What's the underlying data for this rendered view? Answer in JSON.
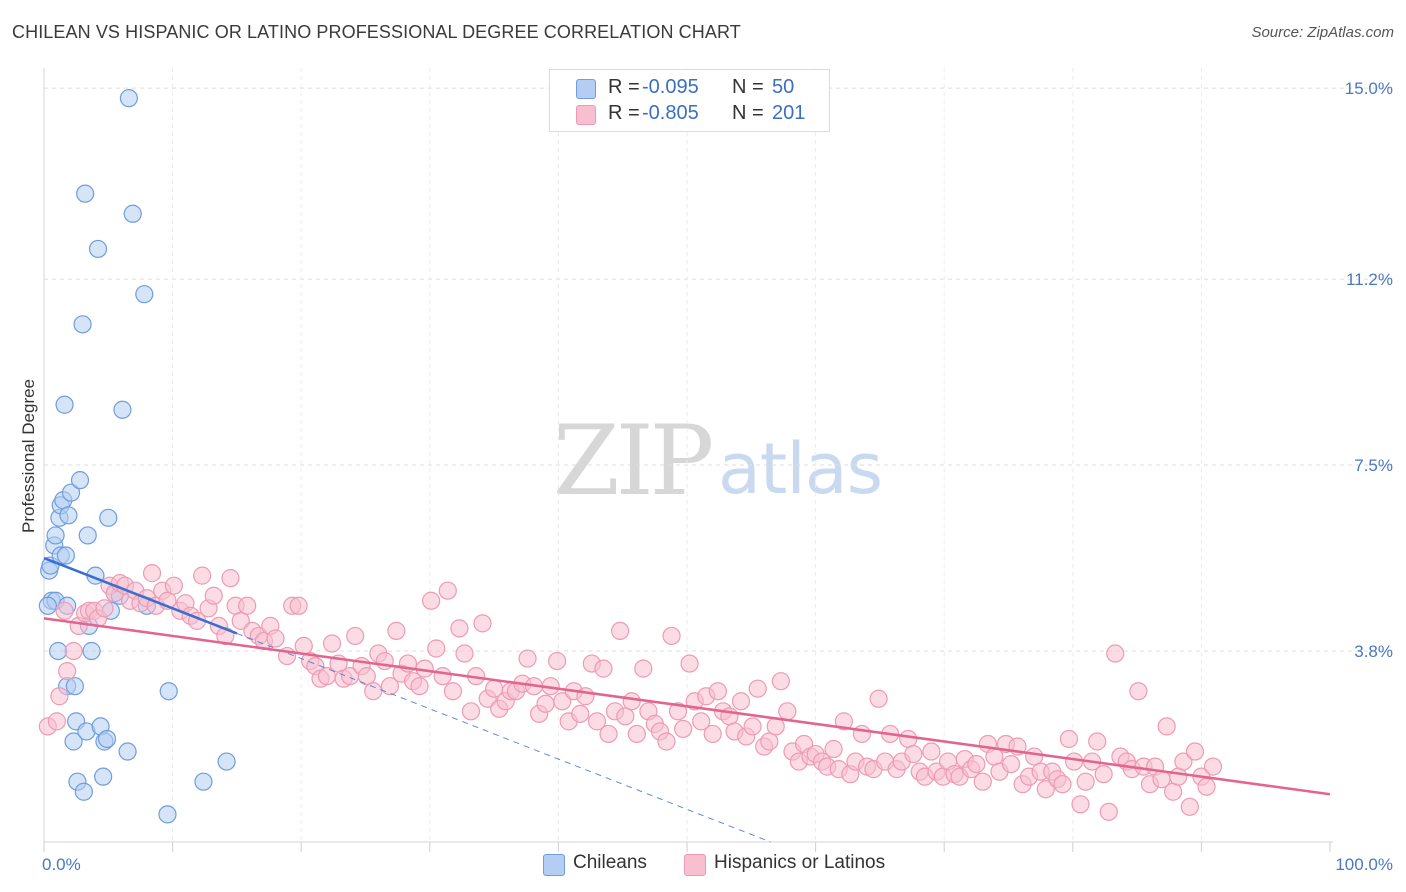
{
  "header": {
    "title": "CHILEAN VS HISPANIC OR LATINO PROFESSIONAL DEGREE CORRELATION CHART",
    "source": "Source: ZipAtlas.com"
  },
  "watermark": {
    "part1": "ZIP",
    "part2": "atlas"
  },
  "colors": {
    "blue_fill": "#b4cdf3",
    "blue_stroke": "#6f9ddd",
    "blue_line": "#3a6fd0",
    "pink_fill": "#f7bfd0",
    "pink_stroke": "#ee9ab4",
    "pink_line": "#e2648f",
    "tick_text": "#4a78c2",
    "grid": "#dedede"
  },
  "legend": {
    "rows": [
      {
        "r_label": "R =",
        "r_value": "-0.095",
        "n_label": "N =",
        "n_value": "50"
      },
      {
        "r_label": "R =",
        "r_value": "-0.805",
        "n_label": "N =",
        "n_value": "201"
      }
    ],
    "bottom": [
      "Chileans",
      "Hispanics or Latinos"
    ]
  },
  "chart_data": {
    "type": "scatter",
    "title": "CHILEAN VS HISPANIC OR LATINO PROFESSIONAL DEGREE CORRELATION CHART",
    "xlabel": "",
    "ylabel": "Professional Degree",
    "xlim": [
      0,
      100
    ],
    "ylim": [
      0,
      15.4
    ],
    "x_tick_labels": [
      "0.0%",
      "100.0%"
    ],
    "y_ticks": [
      3.8,
      7.5,
      11.2,
      15.0
    ],
    "y_tick_labels": [
      "3.8%",
      "7.5%",
      "11.2%",
      "15.0%"
    ],
    "grid": true,
    "series": [
      {
        "name": "Chileans",
        "color": "blue",
        "R": -0.095,
        "N": 50,
        "trend": {
          "x0": 0,
          "y0": 5.65,
          "x1": 15,
          "y1": 4.15,
          "dashed_to_x": 56.5
        },
        "points": [
          [
            0.4,
            5.4
          ],
          [
            0.5,
            5.5
          ],
          [
            0.6,
            4.8
          ],
          [
            0.8,
            5.9
          ],
          [
            0.9,
            4.8
          ],
          [
            0.9,
            6.1
          ],
          [
            1.1,
            3.8
          ],
          [
            1.2,
            6.45
          ],
          [
            1.3,
            5.7
          ],
          [
            1.3,
            6.7
          ],
          [
            1.5,
            6.8
          ],
          [
            1.6,
            8.7
          ],
          [
            1.7,
            5.7
          ],
          [
            1.8,
            4.7
          ],
          [
            1.8,
            3.1
          ],
          [
            1.9,
            6.5
          ],
          [
            2.1,
            6.95
          ],
          [
            2.3,
            2.0
          ],
          [
            2.4,
            3.1
          ],
          [
            2.5,
            2.4
          ],
          [
            2.6,
            1.2
          ],
          [
            2.8,
            7.2
          ],
          [
            3.0,
            10.3
          ],
          [
            3.1,
            1.0
          ],
          [
            3.2,
            12.9
          ],
          [
            3.3,
            2.2
          ],
          [
            3.4,
            6.1
          ],
          [
            3.5,
            4.3
          ],
          [
            3.7,
            3.8
          ],
          [
            4.0,
            5.3
          ],
          [
            4.2,
            11.8
          ],
          [
            4.4,
            2.3
          ],
          [
            4.6,
            1.3
          ],
          [
            4.7,
            2.0
          ],
          [
            4.9,
            2.05
          ],
          [
            5.0,
            6.45
          ],
          [
            5.2,
            4.6
          ],
          [
            5.5,
            4.95
          ],
          [
            5.9,
            4.9
          ],
          [
            6.1,
            8.6
          ],
          [
            6.5,
            1.8
          ],
          [
            6.6,
            14.8
          ],
          [
            6.9,
            12.5
          ],
          [
            7.8,
            10.9
          ],
          [
            8.0,
            4.7
          ],
          [
            9.6,
            0.55
          ],
          [
            9.7,
            3.0
          ],
          [
            12.4,
            1.2
          ],
          [
            14.2,
            1.6
          ],
          [
            0.3,
            4.7
          ]
        ]
      },
      {
        "name": "Hispanics or Latinos",
        "color": "pink",
        "R": -0.805,
        "N": 201,
        "trend": {
          "x0": 0,
          "y0": 4.45,
          "x1": 100,
          "y1": 0.95
        },
        "points": [
          [
            0.3,
            2.3
          ],
          [
            1.0,
            2.4
          ],
          [
            1.2,
            2.9
          ],
          [
            1.6,
            4.6
          ],
          [
            1.8,
            3.4
          ],
          [
            2.3,
            3.8
          ],
          [
            2.7,
            4.3
          ],
          [
            3.2,
            4.55
          ],
          [
            3.5,
            4.6
          ],
          [
            3.9,
            4.6
          ],
          [
            4.2,
            4.45
          ],
          [
            4.7,
            4.65
          ],
          [
            5.1,
            5.1
          ],
          [
            5.5,
            4.95
          ],
          [
            5.9,
            5.15
          ],
          [
            6.3,
            5.1
          ],
          [
            6.7,
            4.8
          ],
          [
            7.1,
            5.0
          ],
          [
            7.5,
            4.75
          ],
          [
            8.0,
            4.85
          ],
          [
            8.4,
            5.35
          ],
          [
            8.7,
            4.7
          ],
          [
            9.2,
            5.0
          ],
          [
            9.6,
            4.8
          ],
          [
            10.1,
            5.1
          ],
          [
            10.6,
            4.6
          ],
          [
            11.0,
            4.75
          ],
          [
            11.4,
            4.5
          ],
          [
            11.9,
            4.4
          ],
          [
            12.3,
            5.3
          ],
          [
            12.8,
            4.65
          ],
          [
            13.2,
            4.9
          ],
          [
            13.6,
            4.3
          ],
          [
            14.1,
            4.1
          ],
          [
            14.5,
            5.25
          ],
          [
            14.9,
            4.7
          ],
          [
            15.3,
            4.4
          ],
          [
            15.8,
            4.7
          ],
          [
            16.2,
            4.2
          ],
          [
            16.7,
            4.1
          ],
          [
            17.1,
            4.0
          ],
          [
            17.6,
            4.3
          ],
          [
            18.0,
            4.05
          ],
          [
            18.9,
            3.7
          ],
          [
            19.3,
            4.7
          ],
          [
            19.8,
            4.7
          ],
          [
            20.2,
            3.9
          ],
          [
            20.7,
            3.6
          ],
          [
            21.1,
            3.5
          ],
          [
            21.5,
            3.25
          ],
          [
            22.0,
            3.3
          ],
          [
            22.4,
            3.95
          ],
          [
            22.9,
            3.55
          ],
          [
            23.3,
            3.25
          ],
          [
            23.8,
            3.3
          ],
          [
            24.2,
            4.1
          ],
          [
            24.7,
            3.5
          ],
          [
            25.1,
            3.3
          ],
          [
            25.6,
            3.0
          ],
          [
            26.0,
            3.75
          ],
          [
            26.5,
            3.6
          ],
          [
            26.9,
            3.1
          ],
          [
            27.4,
            4.2
          ],
          [
            27.8,
            3.35
          ],
          [
            28.3,
            3.55
          ],
          [
            28.7,
            3.2
          ],
          [
            29.2,
            3.1
          ],
          [
            29.6,
            3.45
          ],
          [
            30.1,
            4.8
          ],
          [
            30.5,
            3.85
          ],
          [
            31.0,
            3.3
          ],
          [
            31.4,
            5.0
          ],
          [
            31.8,
            3.0
          ],
          [
            32.3,
            4.25
          ],
          [
            32.7,
            3.75
          ],
          [
            33.2,
            2.6
          ],
          [
            33.6,
            3.3
          ],
          [
            34.1,
            4.35
          ],
          [
            34.5,
            2.85
          ],
          [
            35.0,
            3.05
          ],
          [
            35.4,
            2.65
          ],
          [
            35.9,
            2.8
          ],
          [
            36.3,
            3.0
          ],
          [
            36.7,
            3.0
          ],
          [
            37.2,
            3.15
          ],
          [
            37.6,
            3.65
          ],
          [
            38.1,
            3.1
          ],
          [
            38.5,
            2.55
          ],
          [
            39.0,
            2.75
          ],
          [
            39.4,
            3.1
          ],
          [
            39.9,
            3.6
          ],
          [
            40.3,
            2.8
          ],
          [
            40.8,
            2.4
          ],
          [
            41.2,
            3.0
          ],
          [
            41.7,
            2.55
          ],
          [
            42.1,
            2.9
          ],
          [
            42.6,
            3.55
          ],
          [
            43.0,
            2.4
          ],
          [
            43.5,
            3.45
          ],
          [
            43.9,
            2.15
          ],
          [
            44.4,
            2.6
          ],
          [
            44.8,
            4.2
          ],
          [
            45.2,
            2.5
          ],
          [
            45.7,
            2.8
          ],
          [
            46.1,
            2.15
          ],
          [
            46.6,
            3.45
          ],
          [
            47.0,
            2.6
          ],
          [
            47.5,
            2.35
          ],
          [
            47.9,
            2.2
          ],
          [
            48.4,
            2.0
          ],
          [
            48.8,
            4.1
          ],
          [
            49.3,
            2.6
          ],
          [
            49.7,
            2.25
          ],
          [
            50.2,
            3.55
          ],
          [
            50.6,
            2.8
          ],
          [
            51.1,
            2.4
          ],
          [
            51.5,
            2.9
          ],
          [
            52.0,
            2.15
          ],
          [
            52.4,
            3.0
          ],
          [
            52.8,
            2.6
          ],
          [
            53.3,
            2.5
          ],
          [
            53.7,
            2.2
          ],
          [
            54.2,
            2.8
          ],
          [
            54.6,
            2.1
          ],
          [
            55.1,
            2.3
          ],
          [
            55.5,
            3.05
          ],
          [
            56.0,
            1.9
          ],
          [
            56.4,
            2.0
          ],
          [
            56.9,
            2.3
          ],
          [
            57.3,
            3.2
          ],
          [
            57.8,
            2.6
          ],
          [
            58.2,
            1.8
          ],
          [
            58.7,
            1.6
          ],
          [
            59.1,
            1.95
          ],
          [
            59.6,
            1.7
          ],
          [
            60.0,
            1.75
          ],
          [
            60.5,
            1.6
          ],
          [
            60.9,
            1.5
          ],
          [
            61.4,
            1.85
          ],
          [
            61.8,
            1.45
          ],
          [
            62.2,
            2.4
          ],
          [
            62.7,
            1.35
          ],
          [
            63.1,
            1.6
          ],
          [
            63.6,
            2.15
          ],
          [
            64.0,
            1.5
          ],
          [
            64.5,
            1.45
          ],
          [
            64.9,
            2.85
          ],
          [
            65.4,
            1.6
          ],
          [
            65.8,
            2.15
          ],
          [
            66.3,
            1.45
          ],
          [
            66.7,
            1.6
          ],
          [
            67.2,
            2.05
          ],
          [
            67.6,
            1.75
          ],
          [
            68.1,
            1.4
          ],
          [
            68.5,
            1.3
          ],
          [
            69.0,
            1.8
          ],
          [
            69.4,
            1.4
          ],
          [
            69.9,
            1.3
          ],
          [
            70.3,
            1.6
          ],
          [
            70.8,
            1.35
          ],
          [
            71.2,
            1.3
          ],
          [
            71.6,
            1.65
          ],
          [
            72.1,
            1.45
          ],
          [
            72.5,
            1.55
          ],
          [
            73.0,
            1.2
          ],
          [
            73.4,
            1.95
          ],
          [
            73.9,
            1.7
          ],
          [
            74.3,
            1.4
          ],
          [
            74.8,
            1.95
          ],
          [
            75.2,
            1.55
          ],
          [
            75.7,
            1.9
          ],
          [
            76.1,
            1.15
          ],
          [
            76.6,
            1.3
          ],
          [
            77.0,
            1.7
          ],
          [
            77.5,
            1.4
          ],
          [
            77.9,
            1.05
          ],
          [
            78.4,
            1.4
          ],
          [
            78.8,
            1.25
          ],
          [
            79.2,
            1.15
          ],
          [
            79.7,
            2.05
          ],
          [
            80.1,
            1.6
          ],
          [
            80.6,
            0.75
          ],
          [
            81.0,
            1.2
          ],
          [
            81.5,
            1.6
          ],
          [
            81.9,
            2.0
          ],
          [
            82.4,
            1.35
          ],
          [
            82.8,
            0.6
          ],
          [
            83.3,
            3.75
          ],
          [
            83.7,
            1.7
          ],
          [
            84.2,
            1.6
          ],
          [
            84.6,
            1.45
          ],
          [
            85.1,
            3.0
          ],
          [
            85.5,
            1.5
          ],
          [
            86.0,
            1.15
          ],
          [
            86.4,
            1.5
          ],
          [
            86.9,
            1.25
          ],
          [
            87.3,
            2.3
          ],
          [
            87.8,
            1.0
          ],
          [
            88.2,
            1.3
          ],
          [
            88.6,
            1.6
          ],
          [
            89.1,
            0.7
          ],
          [
            89.5,
            1.8
          ],
          [
            90.0,
            1.3
          ],
          [
            90.4,
            1.1
          ],
          [
            90.9,
            1.5
          ]
        ]
      }
    ]
  }
}
